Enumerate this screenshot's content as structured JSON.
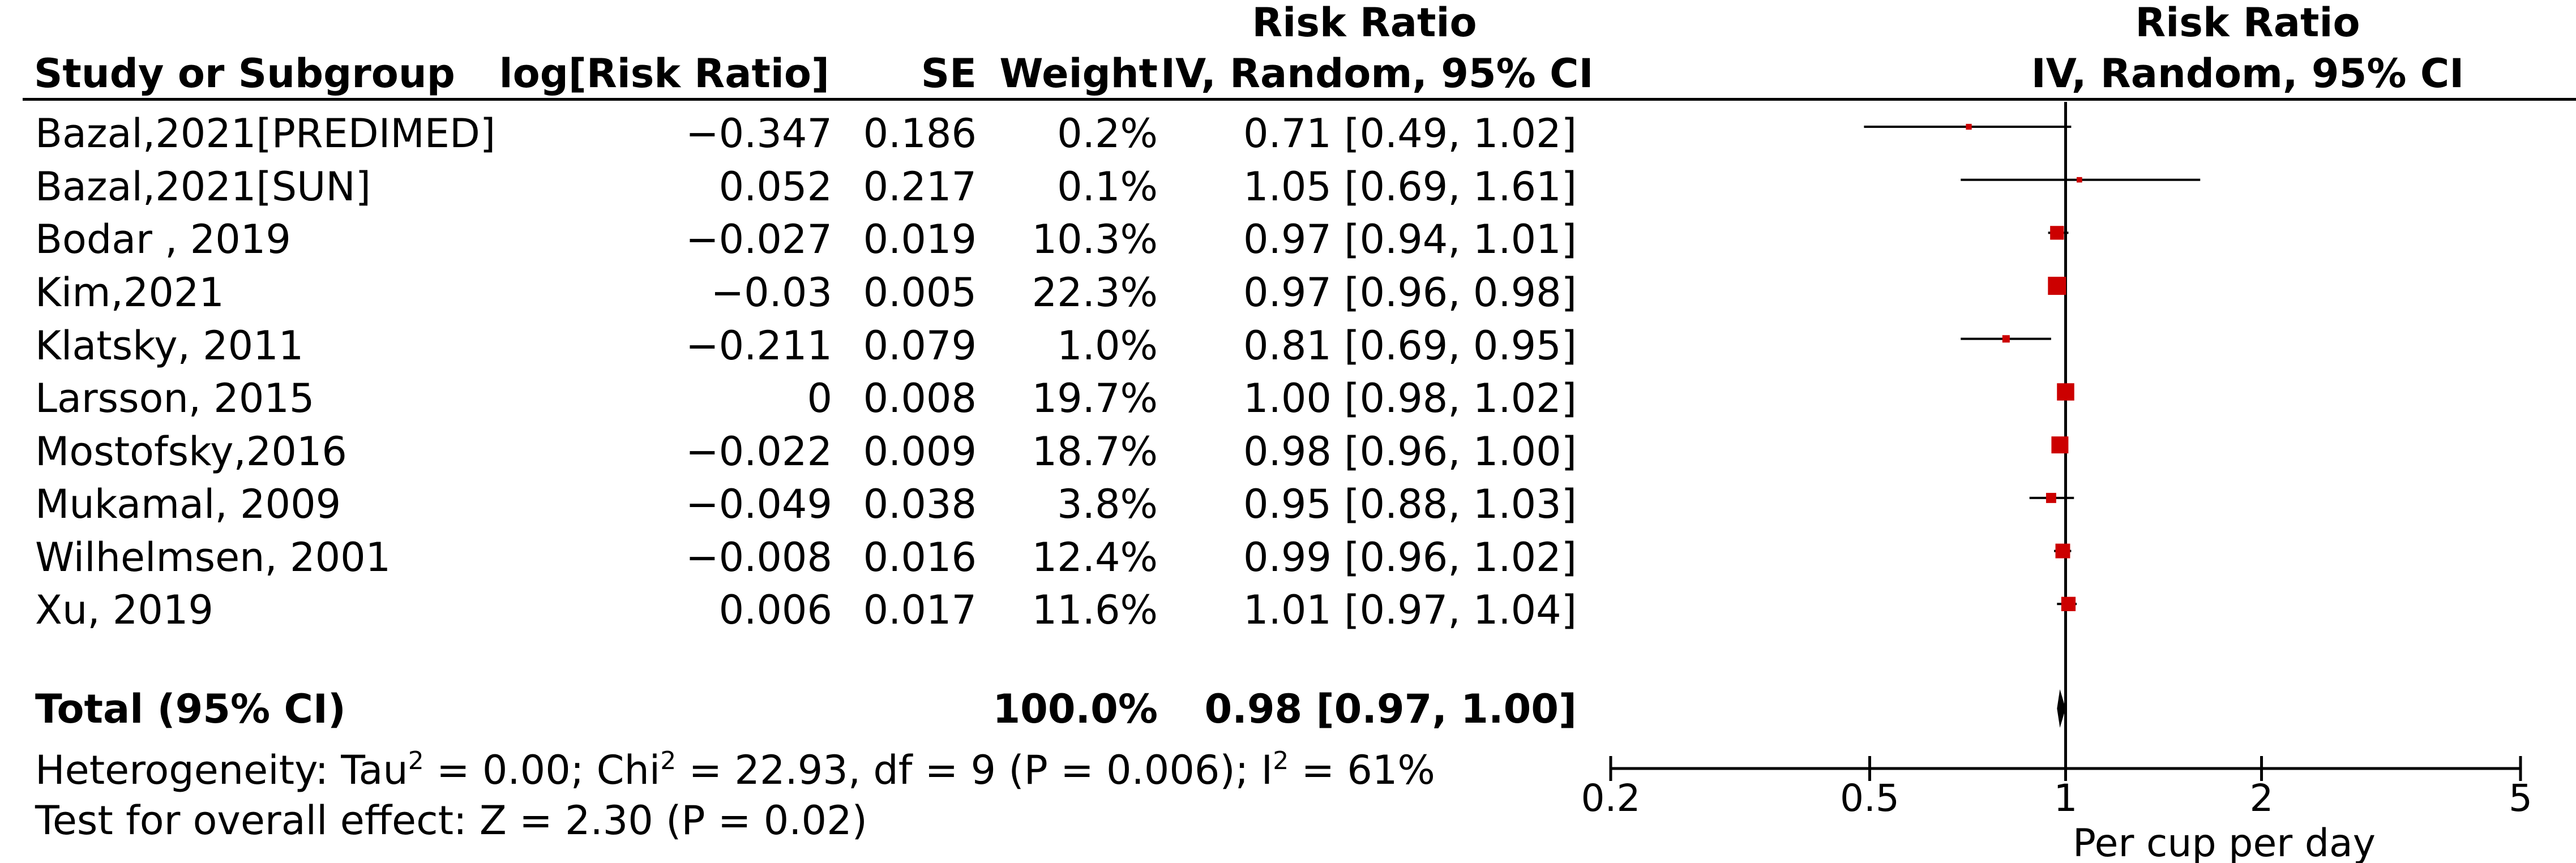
{
  "headers": {
    "study": "Study or Subgroup",
    "log_rr": "log[Risk Ratio]",
    "se": "SE",
    "weight": "Weight",
    "rr_top": "Risk Ratio",
    "rr_method": "IV, Random, 95% CI",
    "plot_top": "Risk Ratio",
    "plot_method": "IV, Random, 95% CI"
  },
  "studies": [
    {
      "study": "Bazal,2021[PREDIMED]",
      "log_rr": "−0.347",
      "se": "0.186",
      "weight": "0.2%",
      "rr_text": "0.71 [0.49, 1.02]"
    },
    {
      "study": "Bazal,2021[SUN]",
      "log_rr": "0.052",
      "se": "0.217",
      "weight": "0.1%",
      "rr_text": "1.05 [0.69, 1.61]"
    },
    {
      "study": "Bodar , 2019",
      "log_rr": "−0.027",
      "se": "0.019",
      "weight": "10.3%",
      "rr_text": "0.97 [0.94, 1.01]"
    },
    {
      "study": "Kim,2021",
      "log_rr": "−0.03",
      "se": "0.005",
      "weight": "22.3%",
      "rr_text": "0.97 [0.96, 0.98]"
    },
    {
      "study": "Klatsky, 2011",
      "log_rr": "−0.211",
      "se": "0.079",
      "weight": "1.0%",
      "rr_text": "0.81 [0.69, 0.95]"
    },
    {
      "study": "Larsson, 2015",
      "log_rr": "0",
      "se": "0.008",
      "weight": "19.7%",
      "rr_text": "1.00 [0.98, 1.02]"
    },
    {
      "study": "Mostofsky,2016",
      "log_rr": "−0.022",
      "se": "0.009",
      "weight": "18.7%",
      "rr_text": "0.98 [0.96, 1.00]"
    },
    {
      "study": "Mukamal, 2009",
      "log_rr": "−0.049",
      "se": "0.038",
      "weight": "3.8%",
      "rr_text": "0.95 [0.88, 1.03]"
    },
    {
      "study": "Wilhelmsen, 2001",
      "log_rr": "−0.008",
      "se": "0.016",
      "weight": "12.4%",
      "rr_text": "0.99 [0.96, 1.02]"
    },
    {
      "study": "Xu, 2019",
      "log_rr": "0.006",
      "se": "0.017",
      "weight": "11.6%",
      "rr_text": "1.01 [0.97, 1.04]"
    }
  ],
  "total": {
    "label": "Total (95% CI)",
    "weight": "100.0%",
    "rr_text": "0.98 [0.97, 1.00]"
  },
  "heterogeneity": {
    "prefix": "Heterogeneity: Tau",
    "tau_sup": "2",
    "mid1": " = 0.00; Chi",
    "chi_sup": "2",
    "mid2": " = 22.93, df = 9 (P = 0.006); I",
    "i_sup": "2",
    "suffix": " = 61%"
  },
  "overall_effect": "Test for overall effect: Z = 2.30 (P = 0.02)",
  "axis": {
    "ticks": [
      {
        "value": 0.2,
        "label": "0.2"
      },
      {
        "value": 0.5,
        "label": "0.5"
      },
      {
        "value": 1,
        "label": "1"
      },
      {
        "value": 2,
        "label": "2"
      },
      {
        "value": 5,
        "label": "5"
      }
    ],
    "label": "Per cup per day"
  },
  "colors": {
    "marker": "#cc0000",
    "line": "#000000"
  },
  "chart_data": {
    "type": "forest",
    "scale": "log",
    "title": "Risk Ratio IV, Random, 95% CI",
    "xlabel": "Per cup per day",
    "xlim": [
      0.2,
      5
    ],
    "null_value": 1,
    "series": [
      {
        "name": "Bazal,2021[PREDIMED]",
        "rr": 0.71,
        "lower": 0.49,
        "upper": 1.02,
        "weight": 0.2
      },
      {
        "name": "Bazal,2021[SUN]",
        "rr": 1.05,
        "lower": 0.69,
        "upper": 1.61,
        "weight": 0.1
      },
      {
        "name": "Bodar , 2019",
        "rr": 0.97,
        "lower": 0.94,
        "upper": 1.01,
        "weight": 10.3
      },
      {
        "name": "Kim,2021",
        "rr": 0.97,
        "lower": 0.96,
        "upper": 0.98,
        "weight": 22.3
      },
      {
        "name": "Klatsky, 2011",
        "rr": 0.81,
        "lower": 0.69,
        "upper": 0.95,
        "weight": 1.0
      },
      {
        "name": "Larsson, 2015",
        "rr": 1.0,
        "lower": 0.98,
        "upper": 1.02,
        "weight": 19.7
      },
      {
        "name": "Mostofsky,2016",
        "rr": 0.98,
        "lower": 0.96,
        "upper": 1.0,
        "weight": 18.7
      },
      {
        "name": "Mukamal, 2009",
        "rr": 0.95,
        "lower": 0.88,
        "upper": 1.03,
        "weight": 3.8
      },
      {
        "name": "Wilhelmsen, 2001",
        "rr": 0.99,
        "lower": 0.96,
        "upper": 1.02,
        "weight": 12.4
      },
      {
        "name": "Xu, 2019",
        "rr": 1.01,
        "lower": 0.97,
        "upper": 1.04,
        "weight": 11.6
      }
    ],
    "total": {
      "rr": 0.98,
      "lower": 0.97,
      "upper": 1.0,
      "weight": 100.0
    }
  }
}
